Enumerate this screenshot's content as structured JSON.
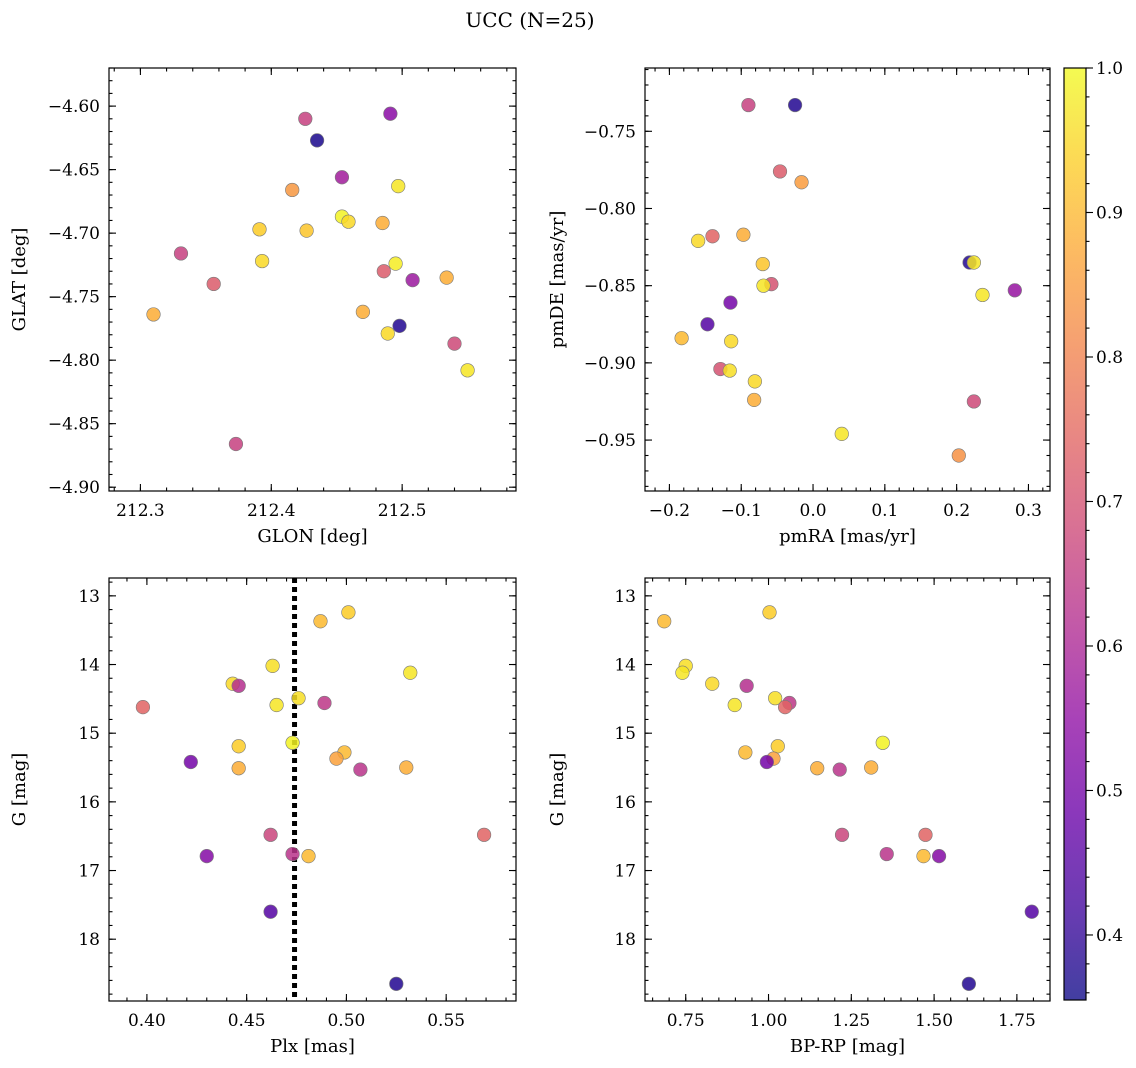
{
  "figure": {
    "title": "UCC (N=25)"
  },
  "colorbar": {
    "colormap": "plasma",
    "range": [
      0.355,
      1.0
    ],
    "ticks": [
      0.4,
      0.5,
      0.6,
      0.7,
      0.8,
      0.9,
      1.0
    ],
    "tick_labels": [
      "0.4",
      "0.5",
      "0.6",
      "0.7",
      "0.8",
      "0.9",
      "1.0"
    ]
  },
  "chart_data": [
    {
      "type": "scatter",
      "title": "",
      "xlabel": "GLON [deg]",
      "ylabel": "GLAT [deg]",
      "xlim": [
        212.276,
        212.587
      ],
      "ylim": [
        -4.903,
        -4.57
      ],
      "y_inverted": false,
      "xticks": [
        212.3,
        212.4,
        212.5
      ],
      "xtick_labels": [
        "212.3",
        "212.4",
        "212.5"
      ],
      "yticks": [
        -4.6,
        -4.65,
        -4.7,
        -4.75,
        -4.8,
        -4.85,
        -4.9
      ],
      "ytick_labels": [
        "−4.60",
        "−4.65",
        "−4.70",
        "−4.75",
        "−4.80",
        "−4.85",
        "−4.90"
      ],
      "grid": false,
      "points": [
        {
          "x": 212.491,
          "y": -4.606,
          "c": 0.54
        },
        {
          "x": 212.426,
          "y": -4.61,
          "c": 0.66
        },
        {
          "x": 212.435,
          "y": -4.627,
          "c": 0.37
        },
        {
          "x": 212.454,
          "y": -4.656,
          "c": 0.58
        },
        {
          "x": 212.416,
          "y": -4.666,
          "c": 0.84
        },
        {
          "x": 212.497,
          "y": -4.663,
          "c": 0.97
        },
        {
          "x": 212.454,
          "y": -4.687,
          "c": 0.99
        },
        {
          "x": 212.459,
          "y": -4.691,
          "c": 0.95
        },
        {
          "x": 212.485,
          "y": -4.692,
          "c": 0.88
        },
        {
          "x": 212.391,
          "y": -4.697,
          "c": 0.93
        },
        {
          "x": 212.427,
          "y": -4.698,
          "c": 0.92
        },
        {
          "x": 212.331,
          "y": -4.716,
          "c": 0.66
        },
        {
          "x": 212.393,
          "y": -4.722,
          "c": 0.95
        },
        {
          "x": 212.495,
          "y": -4.724,
          "c": 0.98
        },
        {
          "x": 212.486,
          "y": -4.73,
          "c": 0.72
        },
        {
          "x": 212.534,
          "y": -4.735,
          "c": 0.88
        },
        {
          "x": 212.508,
          "y": -4.737,
          "c": 0.57
        },
        {
          "x": 212.356,
          "y": -4.74,
          "c": 0.72
        },
        {
          "x": 212.31,
          "y": -4.764,
          "c": 0.88
        },
        {
          "x": 212.47,
          "y": -4.762,
          "c": 0.88
        },
        {
          "x": 212.489,
          "y": -4.779,
          "c": 0.95
        },
        {
          "x": 212.498,
          "y": -4.773,
          "c": 0.38
        },
        {
          "x": 212.54,
          "y": -4.787,
          "c": 0.68
        },
        {
          "x": 212.55,
          "y": -4.808,
          "c": 0.97
        },
        {
          "x": 212.373,
          "y": -4.866,
          "c": 0.66
        }
      ]
    },
    {
      "type": "scatter",
      "title": "",
      "xlabel": "pmRA [mas/yr]",
      "ylabel": "pmDE [mas/yr]",
      "xlim": [
        -0.234,
        0.33
      ],
      "ylim": [
        -0.983,
        -0.709
      ],
      "y_inverted": false,
      "xticks": [
        -0.2,
        -0.1,
        0.0,
        0.1,
        0.2,
        0.3
      ],
      "xtick_labels": [
        "−0.2",
        "−0.1",
        "0.0",
        "0.1",
        "0.2",
        "0.3"
      ],
      "yticks": [
        -0.75,
        -0.8,
        -0.85,
        -0.9,
        -0.95
      ],
      "ytick_labels": [
        "−0.75",
        "−0.80",
        "−0.85",
        "−0.90",
        "−0.95"
      ],
      "grid": false,
      "points": [
        {
          "x": -0.09,
          "y": -0.733,
          "c": 0.66
        },
        {
          "x": -0.025,
          "y": -0.733,
          "c": 0.38
        },
        {
          "x": -0.046,
          "y": -0.776,
          "c": 0.72
        },
        {
          "x": -0.016,
          "y": -0.783,
          "c": 0.85
        },
        {
          "x": -0.16,
          "y": -0.821,
          "c": 0.95
        },
        {
          "x": -0.14,
          "y": -0.818,
          "c": 0.74
        },
        {
          "x": -0.097,
          "y": -0.817,
          "c": 0.88
        },
        {
          "x": 0.218,
          "y": -0.835,
          "c": 0.38
        },
        {
          "x": 0.224,
          "y": -0.835,
          "c": 0.97
        },
        {
          "x": -0.07,
          "y": -0.836,
          "c": 0.92
        },
        {
          "x": -0.058,
          "y": -0.849,
          "c": 0.7
        },
        {
          "x": -0.069,
          "y": -0.85,
          "c": 0.97
        },
        {
          "x": 0.281,
          "y": -0.853,
          "c": 0.56
        },
        {
          "x": 0.236,
          "y": -0.856,
          "c": 0.97
        },
        {
          "x": -0.115,
          "y": -0.861,
          "c": 0.5
        },
        {
          "x": -0.147,
          "y": -0.875,
          "c": 0.45
        },
        {
          "x": -0.183,
          "y": -0.884,
          "c": 0.9
        },
        {
          "x": -0.114,
          "y": -0.886,
          "c": 0.95
        },
        {
          "x": -0.129,
          "y": -0.904,
          "c": 0.7
        },
        {
          "x": -0.116,
          "y": -0.905,
          "c": 0.96
        },
        {
          "x": -0.081,
          "y": -0.912,
          "c": 0.95
        },
        {
          "x": -0.082,
          "y": -0.924,
          "c": 0.88
        },
        {
          "x": 0.224,
          "y": -0.925,
          "c": 0.68
        },
        {
          "x": 0.04,
          "y": -0.946,
          "c": 0.97
        },
        {
          "x": 0.203,
          "y": -0.96,
          "c": 0.83
        }
      ]
    },
    {
      "type": "scatter",
      "title": "",
      "xlabel": "Plx [mas]",
      "ylabel": "G [mag]",
      "xlim": [
        0.381,
        0.585
      ],
      "ylim": [
        12.74,
        18.9
      ],
      "y_inverted": true,
      "xticks": [
        0.4,
        0.45,
        0.5,
        0.55
      ],
      "xtick_labels": [
        "0.40",
        "0.45",
        "0.50",
        "0.55"
      ],
      "yticks": [
        13,
        14,
        15,
        16,
        17,
        18
      ],
      "ytick_labels": [
        "13",
        "14",
        "15",
        "16",
        "17",
        "18"
      ],
      "grid": false,
      "reference_line": {
        "axis": "x",
        "value": 0.474,
        "style": "dotted",
        "color": "#000000"
      },
      "points": [
        {
          "x": 0.501,
          "y": 13.24,
          "c": 0.93
        },
        {
          "x": 0.487,
          "y": 13.37,
          "c": 0.9
        },
        {
          "x": 0.463,
          "y": 14.02,
          "c": 0.96
        },
        {
          "x": 0.532,
          "y": 14.12,
          "c": 0.97
        },
        {
          "x": 0.443,
          "y": 14.28,
          "c": 0.95
        },
        {
          "x": 0.446,
          "y": 14.31,
          "c": 0.62
        },
        {
          "x": 0.476,
          "y": 14.49,
          "c": 0.96
        },
        {
          "x": 0.465,
          "y": 14.59,
          "c": 0.97
        },
        {
          "x": 0.489,
          "y": 14.56,
          "c": 0.64
        },
        {
          "x": 0.398,
          "y": 14.62,
          "c": 0.74
        },
        {
          "x": 0.473,
          "y": 15.14,
          "c": 0.99
        },
        {
          "x": 0.446,
          "y": 15.19,
          "c": 0.93
        },
        {
          "x": 0.499,
          "y": 15.28,
          "c": 0.9
        },
        {
          "x": 0.495,
          "y": 15.37,
          "c": 0.86
        },
        {
          "x": 0.422,
          "y": 15.42,
          "c": 0.5
        },
        {
          "x": 0.446,
          "y": 15.51,
          "c": 0.88
        },
        {
          "x": 0.53,
          "y": 15.5,
          "c": 0.88
        },
        {
          "x": 0.507,
          "y": 15.53,
          "c": 0.63
        },
        {
          "x": 0.462,
          "y": 16.48,
          "c": 0.67
        },
        {
          "x": 0.569,
          "y": 16.48,
          "c": 0.74
        },
        {
          "x": 0.43,
          "y": 16.79,
          "c": 0.53
        },
        {
          "x": 0.473,
          "y": 16.76,
          "c": 0.63
        },
        {
          "x": 0.481,
          "y": 16.79,
          "c": 0.9
        },
        {
          "x": 0.462,
          "y": 17.6,
          "c": 0.45
        },
        {
          "x": 0.525,
          "y": 18.65,
          "c": 0.38
        }
      ]
    },
    {
      "type": "scatter",
      "title": "",
      "xlabel": "BP-RP [mag]",
      "ylabel": "G [mag]",
      "xlim": [
        0.627,
        1.85
      ],
      "ylim": [
        12.74,
        18.9
      ],
      "y_inverted": true,
      "xticks": [
        0.75,
        1.0,
        1.25,
        1.5,
        1.75
      ],
      "xtick_labels": [
        "0.75",
        "1.00",
        "1.25",
        "1.50",
        "1.75"
      ],
      "yticks": [
        13,
        14,
        15,
        16,
        17,
        18
      ],
      "ytick_labels": [
        "13",
        "14",
        "15",
        "16",
        "17",
        "18"
      ],
      "grid": false,
      "points": [
        {
          "x": 0.685,
          "y": 13.37,
          "c": 0.9
        },
        {
          "x": 1.003,
          "y": 13.24,
          "c": 0.93
        },
        {
          "x": 0.75,
          "y": 14.02,
          "c": 0.96
        },
        {
          "x": 0.74,
          "y": 14.12,
          "c": 0.97
        },
        {
          "x": 0.83,
          "y": 14.28,
          "c": 0.95
        },
        {
          "x": 0.934,
          "y": 14.31,
          "c": 0.62
        },
        {
          "x": 1.02,
          "y": 14.49,
          "c": 0.96
        },
        {
          "x": 0.898,
          "y": 14.59,
          "c": 0.97
        },
        {
          "x": 1.063,
          "y": 14.56,
          "c": 0.64
        },
        {
          "x": 1.05,
          "y": 14.62,
          "c": 0.74
        },
        {
          "x": 1.345,
          "y": 15.14,
          "c": 0.99
        },
        {
          "x": 1.028,
          "y": 15.19,
          "c": 0.93
        },
        {
          "x": 0.93,
          "y": 15.28,
          "c": 0.9
        },
        {
          "x": 1.015,
          "y": 15.37,
          "c": 0.86
        },
        {
          "x": 0.995,
          "y": 15.42,
          "c": 0.5
        },
        {
          "x": 1.147,
          "y": 15.51,
          "c": 0.88
        },
        {
          "x": 1.31,
          "y": 15.5,
          "c": 0.88
        },
        {
          "x": 1.215,
          "y": 15.53,
          "c": 0.63
        },
        {
          "x": 1.222,
          "y": 16.48,
          "c": 0.67
        },
        {
          "x": 1.474,
          "y": 16.48,
          "c": 0.74
        },
        {
          "x": 1.515,
          "y": 16.79,
          "c": 0.53
        },
        {
          "x": 1.357,
          "y": 16.76,
          "c": 0.63
        },
        {
          "x": 1.468,
          "y": 16.79,
          "c": 0.9
        },
        {
          "x": 1.795,
          "y": 17.6,
          "c": 0.45
        },
        {
          "x": 1.605,
          "y": 18.65,
          "c": 0.38
        }
      ]
    }
  ]
}
